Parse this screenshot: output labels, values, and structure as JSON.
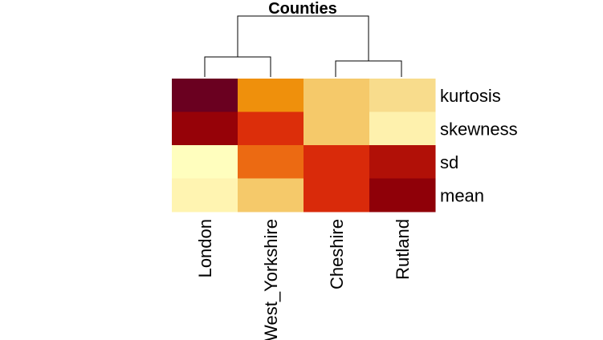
{
  "chart_data": {
    "type": "heatmap",
    "title": "Counties",
    "columns": [
      "London",
      "West_Yorkshire",
      "Cheshire",
      "Rutland"
    ],
    "rows": [
      "kurtosis",
      "skewness",
      "sd",
      "mean"
    ],
    "colors": [
      [
        "#6a0020",
        "#ef900c",
        "#f5c96a",
        "#f8dc8c"
      ],
      [
        "#960208",
        "#dc2e0a",
        "#f5c96a",
        "#fef1ad"
      ],
      [
        "#fffebe",
        "#ec6a12",
        "#d92a0a",
        "#b11007"
      ],
      [
        "#fff4b1",
        "#f5c96a",
        "#d92a0a",
        "#8f0008"
      ]
    ],
    "colormap": "heat"
  }
}
